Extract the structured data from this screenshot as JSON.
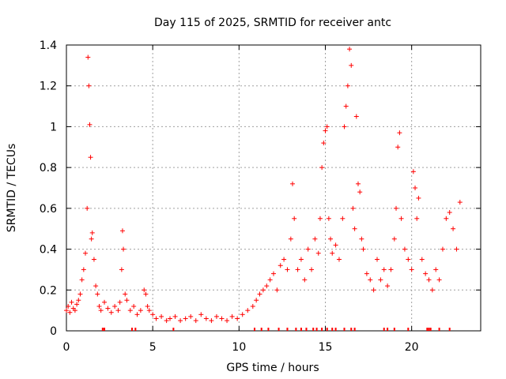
{
  "chart_data": {
    "type": "scatter",
    "title": "Day 115 of 2025, SRMTID for receiver antc",
    "xlabel": "GPS time / hours",
    "ylabel": "SRMTID / TECUs",
    "xlim": [
      0,
      24
    ],
    "ylim": [
      0,
      1.4
    ],
    "xticks": [
      0,
      5,
      10,
      15,
      20
    ],
    "xtick_labels": [
      "0",
      "5",
      "10",
      "15",
      "20"
    ],
    "yticks": [
      0,
      0.2,
      0.4,
      0.6,
      0.8,
      1.0,
      1.2,
      1.4
    ],
    "ytick_labels": [
      "0",
      "0.2",
      "0.4",
      "0.6",
      "0.8",
      "1",
      "1.2",
      "1.4"
    ],
    "grid": true,
    "marker": "+",
    "color": "#ff0000",
    "series": [
      {
        "name": "SRMTID",
        "x": [
          0.0,
          0.1,
          0.2,
          0.3,
          0.4,
          0.5,
          0.6,
          0.7,
          0.8,
          0.9,
          1.0,
          1.1,
          1.2,
          1.25,
          1.3,
          1.35,
          1.4,
          1.45,
          1.5,
          1.6,
          1.7,
          1.8,
          1.9,
          2.0,
          2.2,
          2.4,
          2.6,
          2.8,
          3.0,
          3.1,
          3.2,
          3.25,
          3.3,
          3.4,
          3.5,
          3.7,
          3.9,
          4.1,
          4.3,
          4.5,
          4.6,
          4.7,
          4.8,
          5.0,
          5.2,
          5.5,
          5.8,
          6.0,
          6.3,
          6.6,
          6.9,
          7.2,
          7.5,
          7.8,
          8.1,
          8.4,
          8.7,
          9.0,
          9.3,
          9.6,
          9.9,
          10.2,
          10.5,
          10.8,
          11.0,
          11.2,
          11.4,
          11.6,
          11.8,
          12.0,
          12.2,
          12.4,
          12.6,
          12.8,
          13.0,
          13.1,
          13.2,
          13.4,
          13.6,
          13.8,
          14.0,
          14.2,
          14.4,
          14.6,
          14.7,
          14.8,
          14.9,
          15.0,
          15.1,
          15.2,
          15.3,
          15.4,
          15.6,
          15.8,
          16.0,
          16.1,
          16.2,
          16.3,
          16.4,
          16.5,
          16.6,
          16.7,
          16.8,
          16.9,
          17.0,
          17.1,
          17.2,
          17.4,
          17.6,
          17.8,
          18.0,
          18.2,
          18.4,
          18.6,
          18.8,
          19.0,
          19.1,
          19.2,
          19.3,
          19.4,
          19.6,
          19.8,
          20.0,
          20.1,
          20.2,
          20.3,
          20.4,
          20.6,
          20.8,
          21.0,
          21.2,
          21.4,
          21.6,
          21.8,
          22.0,
          22.2,
          22.4,
          22.6,
          22.8
        ],
        "y": [
          0.1,
          0.12,
          0.09,
          0.14,
          0.11,
          0.1,
          0.13,
          0.15,
          0.18,
          0.25,
          0.3,
          0.38,
          0.6,
          1.34,
          1.2,
          1.01,
          0.85,
          0.45,
          0.48,
          0.35,
          0.22,
          0.18,
          0.12,
          0.1,
          0.14,
          0.11,
          0.09,
          0.12,
          0.1,
          0.14,
          0.3,
          0.49,
          0.4,
          0.18,
          0.15,
          0.1,
          0.12,
          0.08,
          0.1,
          0.2,
          0.18,
          0.12,
          0.1,
          0.08,
          0.06,
          0.07,
          0.05,
          0.06,
          0.07,
          0.05,
          0.06,
          0.07,
          0.05,
          0.08,
          0.06,
          0.05,
          0.07,
          0.06,
          0.05,
          0.07,
          0.06,
          0.08,
          0.1,
          0.12,
          0.15,
          0.18,
          0.2,
          0.22,
          0.25,
          0.28,
          0.2,
          0.32,
          0.35,
          0.3,
          0.45,
          0.72,
          0.55,
          0.3,
          0.35,
          0.25,
          0.4,
          0.3,
          0.45,
          0.38,
          0.55,
          0.8,
          0.92,
          0.98,
          1.0,
          0.55,
          0.45,
          0.38,
          0.42,
          0.35,
          0.55,
          1.0,
          1.1,
          1.2,
          1.38,
          1.3,
          0.6,
          0.5,
          1.05,
          0.72,
          0.68,
          0.45,
          0.4,
          0.28,
          0.25,
          0.2,
          0.35,
          0.25,
          0.3,
          0.22,
          0.3,
          0.45,
          0.6,
          0.9,
          0.97,
          0.55,
          0.4,
          0.35,
          0.3,
          0.78,
          0.7,
          0.55,
          0.65,
          0.35,
          0.28,
          0.25,
          0.2,
          0.3,
          0.25,
          0.4,
          0.55,
          0.58,
          0.5,
          0.4,
          0.63
        ]
      }
    ],
    "rug_x": [
      2.1,
      2.2,
      3.8,
      4.0,
      6.2,
      10.9,
      11.3,
      11.7,
      12.3,
      12.8,
      13.3,
      13.6,
      13.9,
      14.3,
      14.5,
      14.8,
      15.1,
      15.4,
      15.6,
      16.1,
      16.5,
      16.7,
      18.4,
      18.6,
      19.0,
      19.8,
      20.9,
      21.0,
      21.1,
      21.6,
      22.2
    ]
  }
}
